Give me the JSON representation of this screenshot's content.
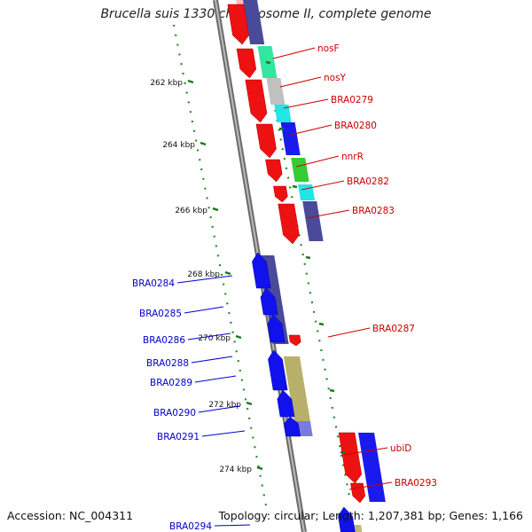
{
  "title": "Brucella suis 1330 chromosome II, complete genome",
  "footer": {
    "accession": "Accession: NC_004311",
    "summary": "Topology: circular; Length: 1,207,381 bp; Genes: 1,166"
  },
  "colors": {
    "forward_label": "#cc0000",
    "reverse_label": "#0000cc",
    "tick": "#1a7a1a",
    "backbone": "#888888"
  },
  "ticks": [
    {
      "label": "262 kbp"
    },
    {
      "label": "264 kbp"
    },
    {
      "label": "266 kbp"
    },
    {
      "label": "268 kbp"
    },
    {
      "label": "270 kbp"
    },
    {
      "label": "272 kbp"
    },
    {
      "label": "274 kbp"
    }
  ],
  "forward_genes": [
    {
      "label": "nosF"
    },
    {
      "label": "nosY"
    },
    {
      "label": "BRA0279"
    },
    {
      "label": "BRA0280"
    },
    {
      "label": "nnrR"
    },
    {
      "label": "BRA0282"
    },
    {
      "label": "BRA0283"
    },
    {
      "label": "BRA0287"
    },
    {
      "label": "ubiD"
    },
    {
      "label": "BRA0293"
    }
  ],
  "reverse_genes": [
    {
      "label": "BRA0284"
    },
    {
      "label": "BRA0285"
    },
    {
      "label": "BRA0286"
    },
    {
      "label": "BRA0288"
    },
    {
      "label": "BRA0289"
    },
    {
      "label": "BRA0290"
    },
    {
      "label": "BRA0291"
    },
    {
      "label": "BRA0294"
    }
  ]
}
